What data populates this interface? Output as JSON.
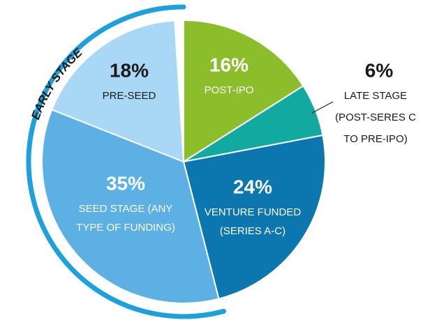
{
  "chart_data": {
    "type": "pie",
    "arc_label": "EARLY STAGE",
    "categories": [
      [
        "POST-IPO"
      ],
      [
        "LATE STAGE",
        "(POST-SERES C",
        "TO PRE-IPO)"
      ],
      [
        "VENTURE FUNDED",
        "(SERIES A-C)"
      ],
      [
        "SEED STAGE (ANY",
        "TYPE OF FUNDING)"
      ],
      [
        "PRE-SEED"
      ]
    ],
    "values": [
      16,
      6,
      24,
      35,
      18
    ],
    "value_labels": [
      "16%",
      "6%",
      "24%",
      "35%",
      "18%"
    ],
    "colors": [
      "#8cbd2b",
      "#12a9a1",
      "#0b77ae",
      "#5db0e3",
      "#a8d8f6"
    ]
  }
}
